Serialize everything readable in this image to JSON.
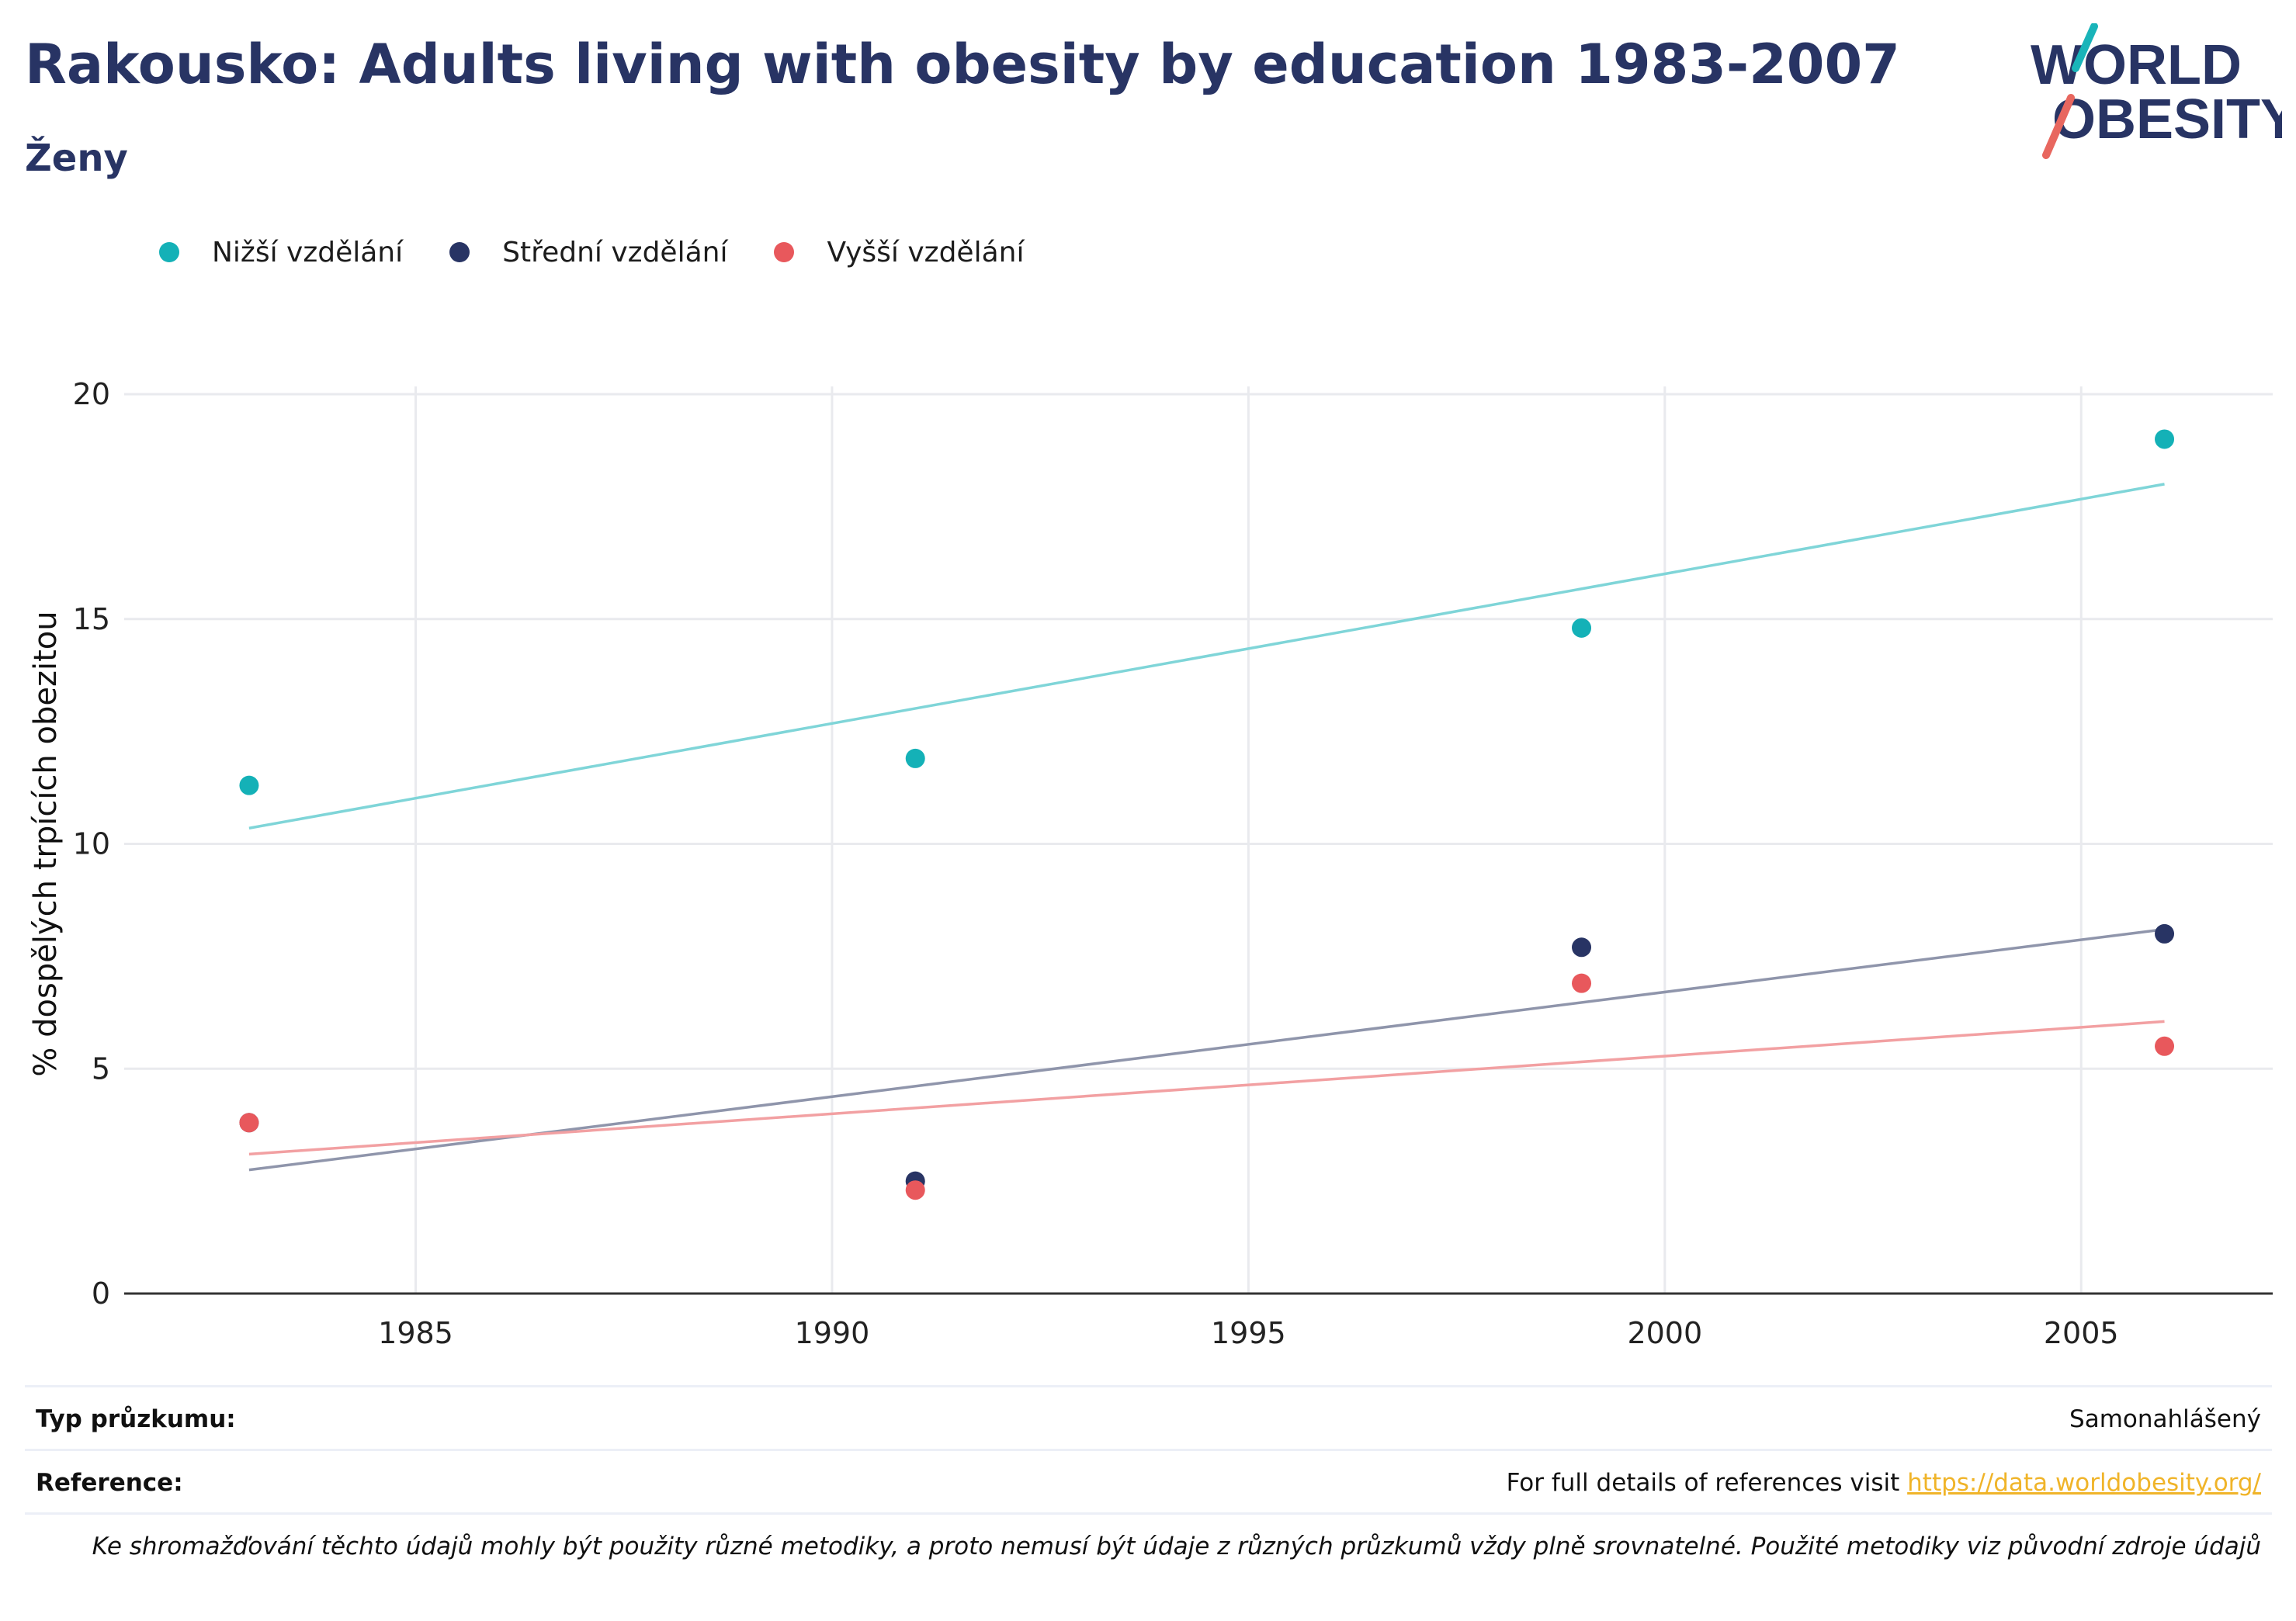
{
  "header": {
    "title": "Rakousko: Adults living with obesity by education 1983-2007",
    "subtitle": "Ženy"
  },
  "logo": {
    "line1": "WORLD",
    "line2": "OBESITY",
    "colors": {
      "text": "#283464",
      "teal": "#19b4b9",
      "coral": "#e8675f"
    }
  },
  "legend": [
    {
      "name": "Nižší vzdělání",
      "color": "#14b1b7"
    },
    {
      "name": "Střední vzdělání",
      "color": "#283464"
    },
    {
      "name": "Vyšší vzdělání",
      "color": "#e8585c"
    }
  ],
  "chart_data": {
    "type": "scatter",
    "ylabel": "% dospělých trpících obezitou",
    "xlabel": "",
    "xlim": [
      1981.5,
      2007.3
    ],
    "ylim": [
      0,
      20
    ],
    "x_ticks": [
      "1985",
      "1990",
      "1995",
      "2000",
      "2005"
    ],
    "y_ticks": [
      "0",
      "5",
      "10",
      "15",
      "20"
    ],
    "grid": true,
    "legend_position": "top-left",
    "series": [
      {
        "name": "Nižší vzdělání",
        "color": "#14b1b7",
        "trend_color": "#7fd5d8",
        "points": [
          [
            1983,
            11.3
          ],
          [
            1991,
            11.9
          ],
          [
            1999,
            14.8
          ],
          [
            2006,
            19.0
          ]
        ],
        "trend": [
          [
            1983,
            10.35
          ],
          [
            2006,
            18.0
          ]
        ]
      },
      {
        "name": "Střední vzdělání",
        "color": "#283464",
        "trend_color": "#8f95ab",
        "points": [
          [
            1983,
            3.8
          ],
          [
            1991,
            2.5
          ],
          [
            1999,
            7.7
          ],
          [
            2006,
            8.0
          ]
        ],
        "trend": [
          [
            1983,
            2.75
          ],
          [
            2006,
            8.1
          ]
        ]
      },
      {
        "name": "Vyšší vzdělání",
        "color": "#e8585c",
        "trend_color": "#f2a0a2",
        "points": [
          [
            1983,
            3.8
          ],
          [
            1991,
            2.3
          ],
          [
            1999,
            6.9
          ],
          [
            2006,
            5.5
          ]
        ],
        "trend": [
          [
            1983,
            3.1
          ],
          [
            2006,
            6.05
          ]
        ]
      }
    ]
  },
  "footer": {
    "survey_label": "Typ průzkumu:",
    "survey_value": "Samonahlášený",
    "reference_label": "Reference:",
    "reference_text": "For full details of references visit ",
    "reference_link": "https://data.worldobesity.org/",
    "note": "Ke shromažďování těchto údajů mohly být použity různé metodiky, a proto nemusí být údaje z různých průzkumů vždy plně srovnatelné. Použité metodiky viz původní zdroje údajů"
  }
}
